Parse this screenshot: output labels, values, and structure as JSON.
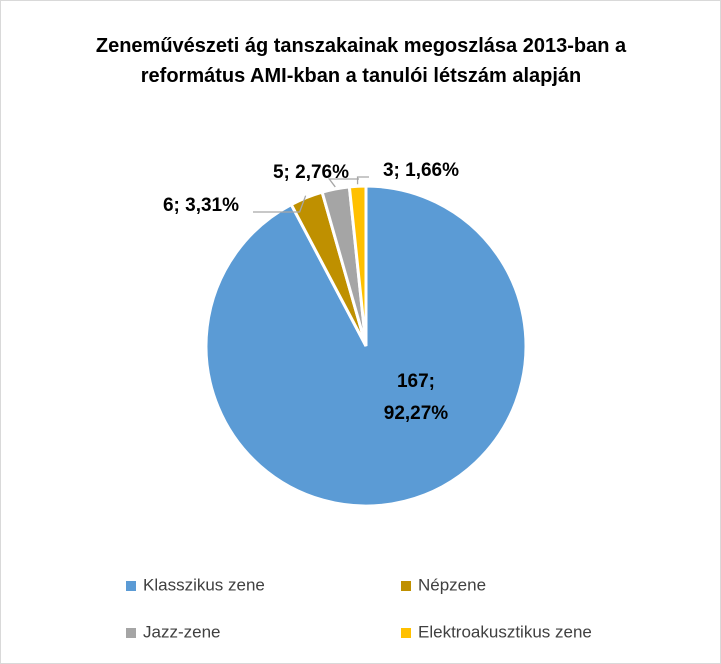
{
  "chart_data": {
    "type": "pie",
    "title": "Zeneművészeti ág tanszakainak megoszlása 2013-ban a református AMI-kban a tanulói létszám alapján",
    "categories": [
      "Klasszikus zene",
      "Népzene",
      "Jazz-zene",
      "Elektroakusztikus zene"
    ],
    "values": [
      167,
      6,
      5,
      3
    ],
    "value_labels": [
      "167; 92,27%",
      "6; 3,31%",
      "5; 2,76%",
      "3; 1,66%"
    ],
    "colors": [
      "#5b9bd5",
      "#bf9000",
      "#a5a5a5",
      "#ffc000"
    ],
    "legend": "bottom"
  }
}
